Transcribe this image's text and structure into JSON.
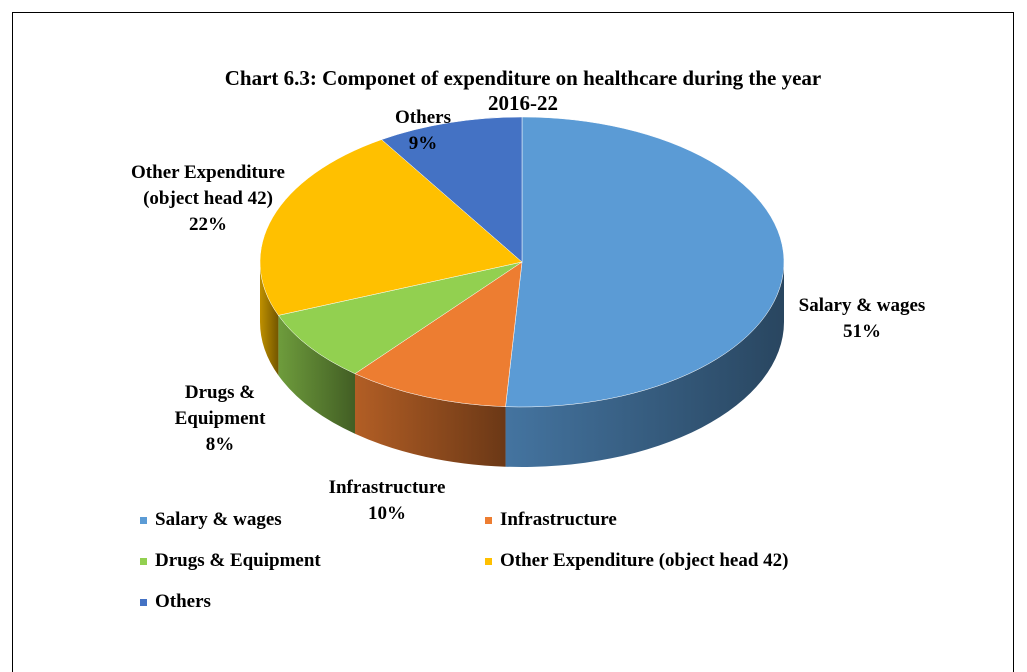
{
  "chart_data": {
    "type": "pie3d",
    "title": "Chart 6.3: Componet of expenditure on healthcare during the year 2016-22",
    "categories": [
      "Salary & wages",
      "Infrastructure",
      "Drugs & Equipment",
      "Other Expenditure (object head 42)",
      "Others"
    ],
    "values": [
      51,
      10,
      8,
      22,
      9
    ],
    "value_labels": [
      "51%",
      "10%",
      "8%",
      "22%",
      "9%"
    ],
    "colors": [
      "#5b9bd5",
      "#ed7d31",
      "#92d050",
      "#ffc000",
      "#4472c4"
    ],
    "legend": "bottom"
  }
}
